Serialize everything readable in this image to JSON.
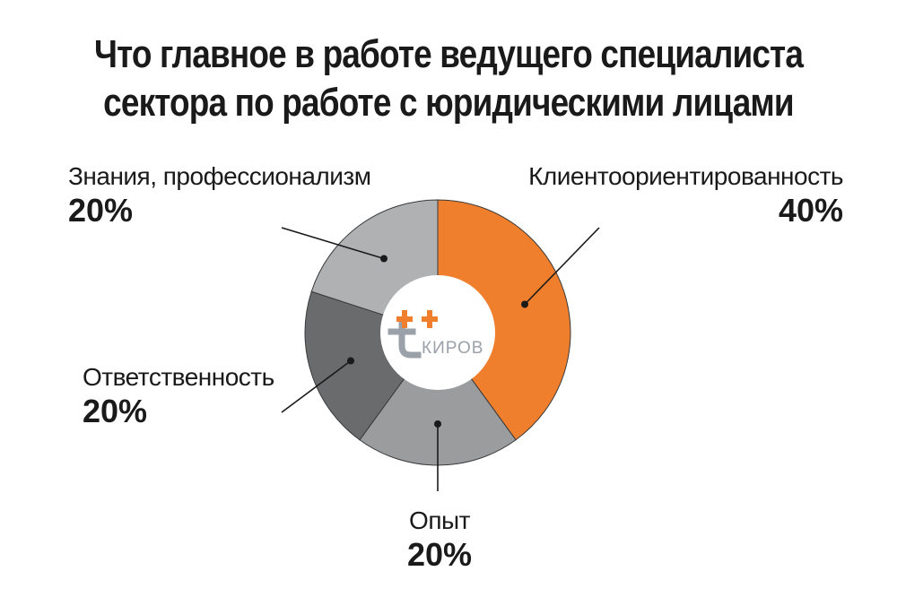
{
  "title": {
    "line1": "Что главное в работе ведущего специалиста",
    "line2": "сектора по работе с юридическими лицами"
  },
  "chart_data": {
    "type": "pie",
    "categories": [
      "Клиентоориентированность",
      "Опыт",
      "Ответственность",
      "Знания, профессионализм"
    ],
    "values": [
      40,
      20,
      20,
      20
    ],
    "value_labels": [
      "40%",
      "20%",
      "20%",
      "20%"
    ],
    "colors": [
      "#f07f2d",
      "#9b9c9e",
      "#6a6b6d",
      "#b0b1b3"
    ],
    "donut": true
  },
  "logo": {
    "text": "КИРОВ",
    "colors": [
      "#f07f2d",
      "#9aa1a8"
    ]
  }
}
